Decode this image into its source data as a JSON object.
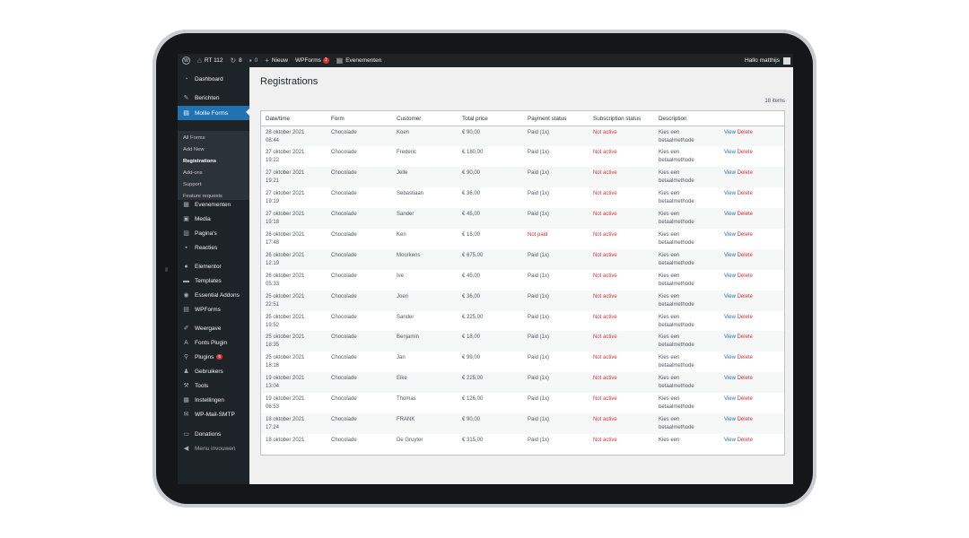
{
  "adminbar": {
    "site_name": "RT 112",
    "updates_count": "8",
    "comments_count": "0",
    "new_label": "Nieuw",
    "wpforms_label": "WPForms",
    "wpforms_badge": "1",
    "events_label": "Evenementen",
    "greeting": "Hallo matthijs"
  },
  "sidebar": {
    "items": [
      {
        "label": "Dashboard",
        "icon": "dashboard-icon"
      },
      {
        "label": "Berichten",
        "icon": "pin-icon"
      },
      {
        "label": "Mollie Forms",
        "icon": "form-icon"
      },
      {
        "label": "Evenementen",
        "icon": "calendar-icon"
      },
      {
        "label": "Media",
        "icon": "media-icon"
      },
      {
        "label": "Pagina's",
        "icon": "page-icon"
      },
      {
        "label": "Reacties",
        "icon": "comment-icon"
      },
      {
        "label": "Elementor",
        "icon": "elementor-icon"
      },
      {
        "label": "Templates",
        "icon": "folder-icon"
      },
      {
        "label": "Essential Addons",
        "icon": "addons-icon"
      },
      {
        "label": "WPForms",
        "icon": "wpforms-icon"
      },
      {
        "label": "Weergave",
        "icon": "brush-icon"
      },
      {
        "label": "Fonts Plugin",
        "icon": "font-icon"
      },
      {
        "label": "Plugins",
        "icon": "plugin-icon",
        "badge": "6"
      },
      {
        "label": "Gebruikers",
        "icon": "users-icon"
      },
      {
        "label": "Tools",
        "icon": "wrench-icon"
      },
      {
        "label": "Instellingen",
        "icon": "settings-icon"
      },
      {
        "label": "WP-Mail-SMTP",
        "icon": "mail-icon"
      },
      {
        "label": "Donations",
        "icon": "donations-icon"
      },
      {
        "label": "Menu invouwen",
        "icon": "collapse-icon"
      }
    ],
    "submenu": [
      "All Forms",
      "Add New",
      "Registrations",
      "Add-ons",
      "Support",
      "Feature requests"
    ]
  },
  "page": {
    "title": "Registrations",
    "items_count": "18 items"
  },
  "table": {
    "headers": [
      "Date/time",
      "Form",
      "Customer",
      "Total price",
      "Payment status",
      "Subscription status",
      "Description",
      ""
    ],
    "view_label": "View",
    "delete_label": "Delete",
    "rows": [
      {
        "date": "28 oktober 2021",
        "time": "08:44",
        "form": "Chocolade",
        "customer": "Koen",
        "price": "€ 90,00",
        "payment": "Paid (1x)",
        "subscription": "Not active",
        "desc1": "Kies een",
        "desc2": "betaalmethode"
      },
      {
        "date": "27 oktober 2021",
        "time": "19:22",
        "form": "Chocolade",
        "customer": "Frederic",
        "price": "€ 180,00",
        "payment": "Paid (1x)",
        "subscription": "Not active",
        "desc1": "Kies een",
        "desc2": "betaalmethode"
      },
      {
        "date": "27 oktober 2021",
        "time": "19:21",
        "form": "Chocolade",
        "customer": "Jelle",
        "price": "€ 90,00",
        "payment": "Paid (1x)",
        "subscription": "Not active",
        "desc1": "Kies een",
        "desc2": "betaalmethode"
      },
      {
        "date": "27 oktober 2021",
        "time": "19:19",
        "form": "Chocolade",
        "customer": "Sebastiaan",
        "price": "€ 36,00",
        "payment": "Paid (1x)",
        "subscription": "Not active",
        "desc1": "Kies een",
        "desc2": "betaalmethode"
      },
      {
        "date": "27 oktober 2021",
        "time": "19:18",
        "form": "Chocolade",
        "customer": "Sander",
        "price": "€ 45,00",
        "payment": "Paid (1x)",
        "subscription": "Not active",
        "desc1": "Kies een",
        "desc2": "betaalmethode"
      },
      {
        "date": "26 oktober 2021",
        "time": "17:48",
        "form": "Chocolade",
        "customer": "Ken",
        "price": "€ 18,00",
        "payment": "Not paid",
        "subscription": "Not active",
        "desc1": "Kies een",
        "desc2": "betaalmethode"
      },
      {
        "date": "26 oktober 2021",
        "time": "12:19",
        "form": "Chocolade",
        "customer": "Moorkens",
        "price": "€ 675,00",
        "payment": "Paid (1x)",
        "subscription": "Not active",
        "desc1": "Kies een",
        "desc2": "betaalmethode"
      },
      {
        "date": "26 oktober 2021",
        "time": "05:33",
        "form": "Chocolade",
        "customer": "Ive",
        "price": "€ 45,00",
        "payment": "Paid (1x)",
        "subscription": "Not active",
        "desc1": "Kies een",
        "desc2": "betaalmethode"
      },
      {
        "date": "25 oktober 2021",
        "time": "22:51",
        "form": "Chocolade",
        "customer": "Joeri",
        "price": "€ 36,00",
        "payment": "Paid (1x)",
        "subscription": "Not active",
        "desc1": "Kies een",
        "desc2": "betaalmethode"
      },
      {
        "date": "25 oktober 2021",
        "time": "19:52",
        "form": "Chocolade",
        "customer": "Sander",
        "price": "€ 225,00",
        "payment": "Paid (1x)",
        "subscription": "Not active",
        "desc1": "Kies een",
        "desc2": "betaalmethode"
      },
      {
        "date": "25 oktober 2021",
        "time": "18:35",
        "form": "Chocolade",
        "customer": "Benjamin",
        "price": "€ 18,00",
        "payment": "Paid (1x)",
        "subscription": "Not active",
        "desc1": "Kies een",
        "desc2": "betaalmethode"
      },
      {
        "date": "25 oktober 2021",
        "time": "18:16",
        "form": "Chocolade",
        "customer": "Jan",
        "price": "€ 99,00",
        "payment": "Paid (1x)",
        "subscription": "Not active",
        "desc1": "Kies een",
        "desc2": "betaalmethode"
      },
      {
        "date": "19 oktober 2021",
        "time": "13:04",
        "form": "Chocolade",
        "customer": "Elke",
        "price": "€ 225,00",
        "payment": "Paid (1x)",
        "subscription": "Not active",
        "desc1": "Kies een",
        "desc2": "betaalmethode"
      },
      {
        "date": "19 oktober 2021",
        "time": "06:53",
        "form": "Chocolade",
        "customer": "Thomas",
        "price": "€ 126,00",
        "payment": "Paid (1x)",
        "subscription": "Not active",
        "desc1": "Kies een",
        "desc2": "betaalmethode"
      },
      {
        "date": "18 oktober 2021",
        "time": "17:24",
        "form": "Chocolade",
        "customer": "FRANK",
        "price": "€ 90,00",
        "payment": "Paid (1x)",
        "subscription": "Not active",
        "desc1": "Kies een",
        "desc2": "betaalmethode"
      },
      {
        "date": "18 oktober 2021",
        "time": "",
        "form": "Chocolade",
        "customer": "De Gruyter",
        "price": "€ 315,00",
        "payment": "Paid (1x)",
        "subscription": "Not active",
        "desc1": "Kies een",
        "desc2": ""
      }
    ]
  },
  "colors": {
    "admin_dark": "#1d2327",
    "accent_blue": "#2271b1",
    "status_red": "#d63638"
  }
}
